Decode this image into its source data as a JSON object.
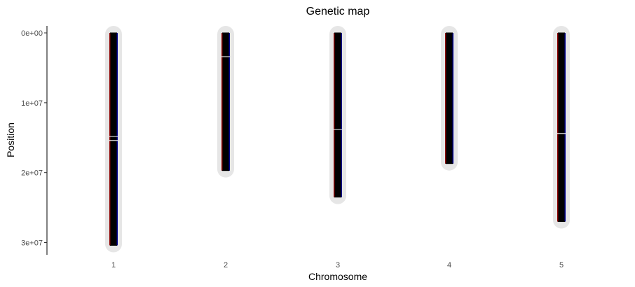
{
  "chart_data": {
    "type": "genetic-map",
    "title": "Genetic map",
    "xlabel": "Chromosome",
    "ylabel": "Position",
    "y_reversed": true,
    "ylim": [
      0,
      30500000
    ],
    "y_ticks": [
      0,
      10000000,
      20000000,
      30000000
    ],
    "y_tick_labels": [
      "0e+00",
      "1e+07",
      "2e+07",
      "3e+07"
    ],
    "grid": false,
    "legend": "none",
    "categories": [
      "1",
      "2",
      "3",
      "4",
      "5"
    ],
    "chromosomes": [
      {
        "name": "1",
        "length": 30400000,
        "marker_positions_tick_dense": [
          0,
          30400000
        ],
        "highlight_positions": [
          14800000,
          15400000
        ]
      },
      {
        "name": "2",
        "length": 19700000,
        "marker_positions_tick_dense": [
          0,
          19700000
        ],
        "highlight_positions": [
          3400000
        ]
      },
      {
        "name": "3",
        "length": 23500000,
        "marker_positions_tick_dense": [
          0,
          23500000
        ],
        "highlight_positions": [
          13800000
        ]
      },
      {
        "name": "4",
        "length": 18700000,
        "marker_positions_tick_dense": [
          0,
          18700000
        ],
        "highlight_positions": []
      },
      {
        "name": "5",
        "length": 27000000,
        "marker_positions_tick_dense": [
          0,
          27000000
        ],
        "highlight_positions": [
          14400000
        ]
      }
    ],
    "colors": {
      "chromosome_background": "#e6e6e6",
      "marker_fill": "#000000",
      "edge_left": "#8b0000",
      "edge_right": "#00008b",
      "highlight": "#ffffff",
      "axis": "#000000",
      "tick_label": "#4d4d4d"
    }
  }
}
